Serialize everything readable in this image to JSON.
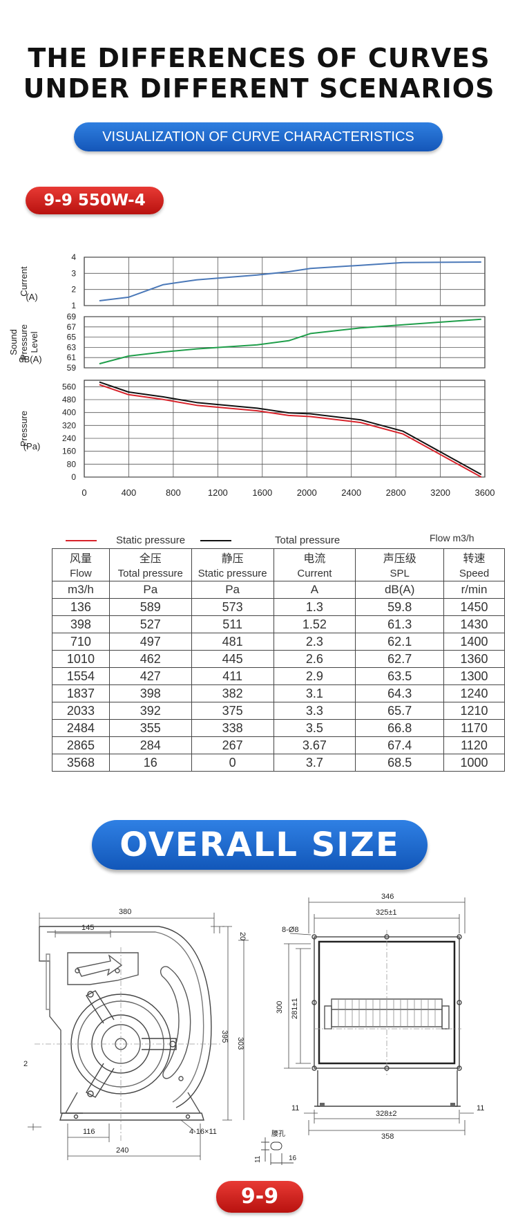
{
  "header": {
    "title_line1": "THE DIFFERENCES OF CURVES",
    "title_line2": "UNDER DIFFERENT SCENARIOS",
    "subtitle": "VISUALIZATION OF CURVE CHARACTERISTICS",
    "model": "9-9  550W-4"
  },
  "chart_data": {
    "type": "line",
    "x_ticks": [
      "0",
      "400",
      "800",
      "1200",
      "1600",
      "2000",
      "2400",
      "2800",
      "3200",
      "3600"
    ],
    "xlim": [
      0,
      3600
    ],
    "panels": [
      {
        "id": "current",
        "ylabel_lines": [
          "Current",
          "(A)"
        ],
        "ylim": [
          1,
          4
        ],
        "y_ticks": [
          "4",
          "3",
          "2",
          "1"
        ],
        "series": [
          {
            "color": "#4a78b8",
            "x": [
              136,
              398,
              710,
              1010,
              1554,
              1837,
              2033,
              2484,
              2865,
              3568
            ],
            "y": [
              1.3,
              1.52,
              2.3,
              2.6,
              2.9,
              3.1,
              3.3,
              3.5,
              3.67,
              3.7
            ]
          }
        ]
      },
      {
        "id": "spl",
        "ylabel_lines": [
          "Sound",
          "Pressure",
          "Level",
          "dB(A)"
        ],
        "ylim": [
          59,
          69
        ],
        "y_ticks": [
          "69",
          "67",
          "65",
          "63",
          "61",
          "59"
        ],
        "series": [
          {
            "color": "#1f9e4a",
            "x": [
              136,
              398,
              710,
              1010,
              1554,
              1837,
              2033,
              2484,
              2865,
              3568
            ],
            "y": [
              59.8,
              61.3,
              62.1,
              62.7,
              63.5,
              64.3,
              65.7,
              66.8,
              67.4,
              68.5
            ]
          }
        ]
      },
      {
        "id": "pressure",
        "ylabel_lines": [
          "Pressure",
          "(Pa)"
        ],
        "ylim": [
          0,
          600
        ],
        "y_ticks": [
          "560",
          "480",
          "400",
          "320",
          "240",
          "160",
          "80",
          "0"
        ],
        "series": [
          {
            "name": "Total pressure",
            "color": "#111111",
            "x": [
              136,
              398,
              710,
              1010,
              1554,
              1837,
              2033,
              2484,
              2865,
              3568
            ],
            "y": [
              589,
              527,
              497,
              462,
              427,
              398,
              392,
              355,
              284,
              16
            ]
          },
          {
            "name": "Static pressure",
            "color": "#d8222a",
            "x": [
              136,
              398,
              710,
              1010,
              1554,
              1837,
              2033,
              2484,
              2865,
              3568
            ],
            "y": [
              573,
              511,
              481,
              445,
              411,
              382,
              375,
              338,
              267,
              0
            ]
          }
        ]
      }
    ]
  },
  "legend": {
    "static": "Static pressure",
    "total": "Total pressure",
    "flow_unit": "Flow m3/h"
  },
  "table": {
    "cn_headers": [
      "风量",
      "全压",
      "静压",
      "电流",
      "声压级",
      "转速"
    ],
    "en_headers": [
      "Flow",
      "Total pressure",
      "Static pressure",
      "Current",
      "SPL",
      "Speed"
    ],
    "units": [
      "m3/h",
      "Pa",
      "Pa",
      "A",
      "dB(A)",
      "r/min"
    ],
    "rows": [
      [
        "136",
        "589",
        "573",
        "1.3",
        "59.8",
        "1450"
      ],
      [
        "398",
        "527",
        "511",
        "1.52",
        "61.3",
        "1430"
      ],
      [
        "710",
        "497",
        "481",
        "2.3",
        "62.1",
        "1400"
      ],
      [
        "1010",
        "462",
        "445",
        "2.6",
        "62.7",
        "1360"
      ],
      [
        "1554",
        "427",
        "411",
        "2.9",
        "63.5",
        "1300"
      ],
      [
        "1837",
        "398",
        "382",
        "3.1",
        "64.3",
        "1240"
      ],
      [
        "2033",
        "392",
        "375",
        "3.3",
        "65.7",
        "1210"
      ],
      [
        "2484",
        "355",
        "338",
        "3.5",
        "66.8",
        "1170"
      ],
      [
        "2865",
        "284",
        "267",
        "3.67",
        "67.4",
        "1120"
      ],
      [
        "3568",
        "16",
        "0",
        "3.7",
        "68.5",
        "1000"
      ]
    ]
  },
  "size": {
    "title": "OVERALL SIZE",
    "dims": {
      "d380": "380",
      "d145": "145",
      "d20": "20",
      "d395": "395",
      "d303": "303",
      "d2": "2",
      "d116": "116",
      "d240": "240",
      "holes": "4-16×11",
      "d346": "346",
      "d325": "325±1",
      "d808": "8-Ø8",
      "d300": "300",
      "d281": "281±1",
      "d11a": "11",
      "d11b": "11",
      "d328": "328±2",
      "d358": "358",
      "hole_label": "腰孔",
      "d16": "16",
      "d11c": "11"
    }
  },
  "footer": {
    "model": "9-9"
  }
}
